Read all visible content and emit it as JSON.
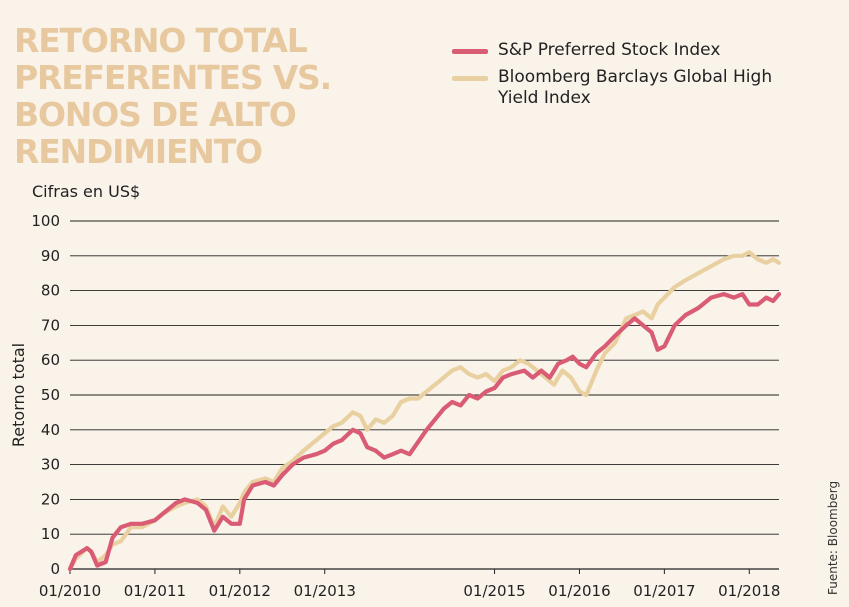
{
  "chart_data": {
    "type": "line",
    "title": [
      "RETORNO TOTAL",
      "PREFERENTES VS.",
      "BONOS DE ALTO",
      "RENDIMIENTO"
    ],
    "subtitle": "Cifras en US$",
    "ylabel": "Retorno total",
    "xlabel": "",
    "source": "Fuente: Bloomberg",
    "ylim": [
      0,
      100
    ],
    "yticks": [
      0,
      10,
      20,
      30,
      40,
      50,
      60,
      70,
      80,
      90,
      100
    ],
    "xlim": [
      2010.0,
      2018.35
    ],
    "xticks": [
      {
        "label": "01/2010",
        "value": 2010.0
      },
      {
        "label": "01/2011",
        "value": 2011.0
      },
      {
        "label": "01/2012",
        "value": 2012.0
      },
      {
        "label": "01/2013",
        "value": 2013.0
      },
      {
        "label": "01/2015",
        "value": 2015.0
      },
      {
        "label": "01/2016",
        "value": 2016.0
      },
      {
        "label": "01/2017",
        "value": 2017.0
      },
      {
        "label": "01/2018",
        "value": 2018.0
      }
    ],
    "grid": "horizontal",
    "legend_position": "top-right",
    "series": [
      {
        "name": "S&P Preferred Stock Index",
        "color": "#d95c74",
        "points": [
          [
            2010.0,
            0
          ],
          [
            2010.07,
            4
          ],
          [
            2010.2,
            6
          ],
          [
            2010.25,
            5
          ],
          [
            2010.32,
            1
          ],
          [
            2010.42,
            2
          ],
          [
            2010.5,
            9
          ],
          [
            2010.6,
            12
          ],
          [
            2010.72,
            13
          ],
          [
            2010.85,
            13
          ],
          [
            2011.0,
            14
          ],
          [
            2011.1,
            16
          ],
          [
            2011.25,
            19
          ],
          [
            2011.35,
            20
          ],
          [
            2011.5,
            19
          ],
          [
            2011.6,
            17
          ],
          [
            2011.7,
            11
          ],
          [
            2011.8,
            15
          ],
          [
            2011.9,
            13
          ],
          [
            2012.0,
            13
          ],
          [
            2012.05,
            20
          ],
          [
            2012.15,
            24
          ],
          [
            2012.3,
            25
          ],
          [
            2012.4,
            24
          ],
          [
            2012.5,
            27
          ],
          [
            2012.62,
            30
          ],
          [
            2012.75,
            32
          ],
          [
            2012.9,
            33
          ],
          [
            2013.0,
            34
          ],
          [
            2013.1,
            36
          ],
          [
            2013.2,
            37
          ],
          [
            2013.33,
            40
          ],
          [
            2013.42,
            39
          ],
          [
            2013.5,
            35
          ],
          [
            2013.6,
            34
          ],
          [
            2013.7,
            32
          ],
          [
            2013.8,
            33
          ],
          [
            2013.9,
            34
          ],
          [
            2014.0,
            33
          ],
          [
            2014.2,
            40
          ],
          [
            2014.4,
            46
          ],
          [
            2014.5,
            48
          ],
          [
            2014.6,
            47
          ],
          [
            2014.7,
            50
          ],
          [
            2014.8,
            49
          ],
          [
            2014.9,
            51
          ],
          [
            2015.0,
            52
          ],
          [
            2015.1,
            55
          ],
          [
            2015.2,
            56
          ],
          [
            2015.35,
            57
          ],
          [
            2015.45,
            55
          ],
          [
            2015.55,
            57
          ],
          [
            2015.65,
            55
          ],
          [
            2015.75,
            59
          ],
          [
            2015.85,
            60
          ],
          [
            2015.92,
            61
          ],
          [
            2016.0,
            59
          ],
          [
            2016.08,
            58
          ],
          [
            2016.2,
            62
          ],
          [
            2016.3,
            64
          ],
          [
            2016.42,
            67
          ],
          [
            2016.55,
            70
          ],
          [
            2016.65,
            72
          ],
          [
            2016.75,
            70
          ],
          [
            2016.85,
            68
          ],
          [
            2016.92,
            63
          ],
          [
            2017.0,
            64
          ],
          [
            2017.12,
            70
          ],
          [
            2017.25,
            73
          ],
          [
            2017.4,
            75
          ],
          [
            2017.55,
            78
          ],
          [
            2017.7,
            79
          ],
          [
            2017.82,
            78
          ],
          [
            2017.92,
            79
          ],
          [
            2018.0,
            76
          ],
          [
            2018.1,
            76
          ],
          [
            2018.2,
            78
          ],
          [
            2018.28,
            77
          ],
          [
            2018.35,
            79
          ]
        ]
      },
      {
        "name": "Bloomberg Barclays Global High Yield Index",
        "color": "#e9d0a0",
        "points": [
          [
            2010.0,
            0
          ],
          [
            2010.07,
            3
          ],
          [
            2010.2,
            6
          ],
          [
            2010.25,
            5
          ],
          [
            2010.32,
            2
          ],
          [
            2010.42,
            4
          ],
          [
            2010.5,
            7
          ],
          [
            2010.6,
            8
          ],
          [
            2010.72,
            12
          ],
          [
            2010.85,
            12
          ],
          [
            2011.0,
            14
          ],
          [
            2011.1,
            16
          ],
          [
            2011.25,
            18
          ],
          [
            2011.35,
            19
          ],
          [
            2011.5,
            20
          ],
          [
            2011.6,
            18
          ],
          [
            2011.7,
            12
          ],
          [
            2011.8,
            18
          ],
          [
            2011.9,
            15
          ],
          [
            2012.0,
            19
          ],
          [
            2012.05,
            22
          ],
          [
            2012.15,
            25
          ],
          [
            2012.3,
            26
          ],
          [
            2012.4,
            25
          ],
          [
            2012.5,
            29
          ],
          [
            2012.62,
            31
          ],
          [
            2012.75,
            34
          ],
          [
            2012.9,
            37
          ],
          [
            2013.0,
            39
          ],
          [
            2013.1,
            41
          ],
          [
            2013.2,
            42
          ],
          [
            2013.33,
            45
          ],
          [
            2013.42,
            44
          ],
          [
            2013.5,
            40
          ],
          [
            2013.6,
            43
          ],
          [
            2013.7,
            42
          ],
          [
            2013.8,
            44
          ],
          [
            2013.9,
            48
          ],
          [
            2014.0,
            49
          ],
          [
            2014.1,
            49
          ],
          [
            2014.2,
            51
          ],
          [
            2014.35,
            54
          ],
          [
            2014.5,
            57
          ],
          [
            2014.6,
            58
          ],
          [
            2014.7,
            56
          ],
          [
            2014.8,
            55
          ],
          [
            2014.9,
            56
          ],
          [
            2015.0,
            54
          ],
          [
            2015.1,
            57
          ],
          [
            2015.2,
            58
          ],
          [
            2015.3,
            60
          ],
          [
            2015.4,
            59
          ],
          [
            2015.5,
            57
          ],
          [
            2015.6,
            55
          ],
          [
            2015.7,
            53
          ],
          [
            2015.8,
            57
          ],
          [
            2015.9,
            55
          ],
          [
            2016.0,
            51
          ],
          [
            2016.08,
            50
          ],
          [
            2016.2,
            57
          ],
          [
            2016.3,
            62
          ],
          [
            2016.42,
            65
          ],
          [
            2016.55,
            72
          ],
          [
            2016.65,
            73
          ],
          [
            2016.75,
            74
          ],
          [
            2016.85,
            72
          ],
          [
            2016.92,
            76
          ],
          [
            2017.0,
            78
          ],
          [
            2017.12,
            81
          ],
          [
            2017.25,
            83
          ],
          [
            2017.4,
            85
          ],
          [
            2017.55,
            87
          ],
          [
            2017.7,
            89
          ],
          [
            2017.82,
            90
          ],
          [
            2017.92,
            90
          ],
          [
            2018.0,
            91
          ],
          [
            2018.1,
            89
          ],
          [
            2018.2,
            88
          ],
          [
            2018.28,
            89
          ],
          [
            2018.35,
            88
          ]
        ]
      }
    ]
  }
}
